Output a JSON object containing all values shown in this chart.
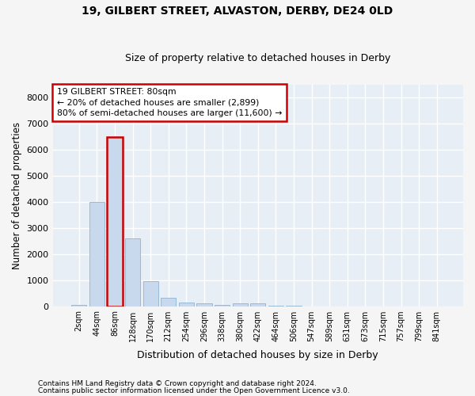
{
  "title1": "19, GILBERT STREET, ALVASTON, DERBY, DE24 0LD",
  "title2": "Size of property relative to detached houses in Derby",
  "xlabel": "Distribution of detached houses by size in Derby",
  "ylabel": "Number of detached properties",
  "footnote1": "Contains HM Land Registry data © Crown copyright and database right 2024.",
  "footnote2": "Contains public sector information licensed under the Open Government Licence v3.0.",
  "annotation_title": "19 GILBERT STREET: 80sqm",
  "annotation_line1": "← 20% of detached houses are smaller (2,899)",
  "annotation_line2": "80% of semi-detached houses are larger (11,600) →",
  "bar_categories": [
    "2sqm",
    "44sqm",
    "86sqm",
    "128sqm",
    "170sqm",
    "212sqm",
    "254sqm",
    "296sqm",
    "338sqm",
    "380sqm",
    "422sqm",
    "464sqm",
    "506sqm",
    "547sqm",
    "589sqm",
    "631sqm",
    "673sqm",
    "715sqm",
    "757sqm",
    "799sqm",
    "841sqm"
  ],
  "bar_values": [
    50,
    4000,
    6500,
    2600,
    950,
    330,
    150,
    100,
    50,
    100,
    100,
    20,
    20,
    0,
    0,
    0,
    0,
    0,
    0,
    0,
    0
  ],
  "bar_color": "#c9d9ed",
  "bar_edge_color": "#8fb4d0",
  "highlight_bar_index": 2,
  "highlight_edge_color": "#cc0000",
  "annotation_box_edge": "#cc0000",
  "plot_bg_color": "#e8eef5",
  "fig_bg_color": "#f5f5f5",
  "grid_color": "#ffffff",
  "ylim": [
    0,
    8500
  ],
  "yticks": [
    0,
    1000,
    2000,
    3000,
    4000,
    5000,
    6000,
    7000,
    8000
  ]
}
